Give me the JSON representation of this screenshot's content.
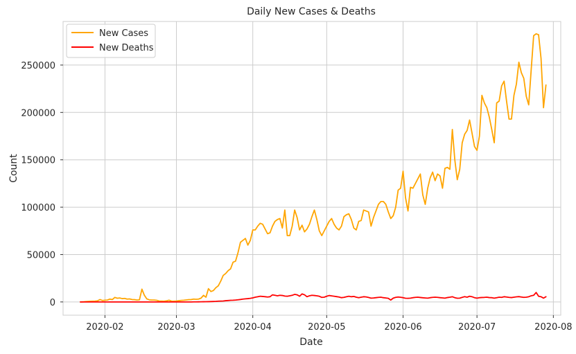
{
  "chart_data": {
    "type": "line",
    "title": "Daily New Cases & Deaths",
    "xlabel": "Date",
    "ylabel": "Count",
    "x_tick_labels": [
      "2020-02",
      "2020-03",
      "2020-04",
      "2020-05",
      "2020-06",
      "2020-07",
      "2020-08"
    ],
    "y_tick_labels": [
      "0",
      "50000",
      "100000",
      "150000",
      "200000",
      "250000"
    ],
    "xlim": [
      "2020-01-15",
      "2020-08-04"
    ],
    "ylim": [
      -14000,
      296000
    ],
    "grid": true,
    "legend_position": "top-left",
    "start_date": "2020-01-22",
    "series": [
      {
        "name": "New Cases",
        "color": "#FFA500",
        "values": [
          0,
          100,
          300,
          500,
          700,
          800,
          900,
          1200,
          2500,
          1500,
          1800,
          2000,
          3000,
          2500,
          4800,
          3900,
          4200,
          3500,
          3700,
          3000,
          3200,
          2500,
          2400,
          2000,
          2200,
          13500,
          7000,
          3200,
          2200,
          2000,
          2000,
          1700,
          1000,
          900,
          800,
          1200,
          1800,
          900,
          800,
          1000,
          1300,
          1600,
          1800,
          2100,
          2400,
          2500,
          3000,
          2800,
          3000,
          4000,
          7000,
          5000,
          14000,
          11000,
          12000,
          15000,
          17000,
          22000,
          28000,
          30000,
          33000,
          35000,
          42000,
          43000,
          52000,
          63000,
          65000,
          67000,
          60000,
          65000,
          76000,
          76000,
          80000,
          83000,
          82000,
          77000,
          72000,
          73000,
          80000,
          85000,
          87000,
          88000,
          78000,
          97000,
          70000,
          70000,
          80000,
          97000,
          89000,
          76000,
          81000,
          74000,
          77000,
          82000,
          90000,
          97000,
          87000,
          75000,
          70000,
          75000,
          80000,
          85000,
          88000,
          82000,
          78000,
          76000,
          80000,
          90000,
          92000,
          93000,
          87000,
          78000,
          76000,
          85000,
          86000,
          97000,
          96000,
          95000,
          80000,
          89000,
          96000,
          103000,
          106000,
          106000,
          103000,
          95000,
          88000,
          91000,
          100000,
          118000,
          120000,
          138000,
          110000,
          96000,
          121000,
          120000,
          125000,
          130000,
          135000,
          113000,
          103000,
          120000,
          131000,
          137000,
          128000,
          135000,
          133000,
          120000,
          141000,
          142000,
          140000,
          182000,
          150000,
          129000,
          140000,
          168000,
          177000,
          181000,
          192000,
          178000,
          164000,
          160000,
          175000,
          218000,
          210000,
          205000,
          195000,
          182000,
          168000,
          210000,
          212000,
          228000,
          233000,
          212000,
          193000,
          193000,
          218000,
          230000,
          253000,
          242000,
          236000,
          217000,
          208000,
          245000,
          281000,
          283000,
          282000,
          257000,
          205000,
          229000
        ]
      },
      {
        "name": "New Deaths",
        "color": "#FF0000",
        "values": [
          0,
          0,
          0,
          0,
          0,
          0,
          0,
          0,
          0,
          0,
          0,
          0,
          0,
          0,
          0,
          0,
          0,
          0,
          0,
          0,
          0,
          0,
          0,
          0,
          0,
          0,
          0,
          0,
          0,
          0,
          0,
          0,
          0,
          0,
          0,
          0,
          0,
          0,
          0,
          0,
          0,
          0,
          0,
          0,
          0,
          0,
          50,
          80,
          100,
          150,
          200,
          250,
          300,
          400,
          500,
          600,
          800,
          900,
          1000,
          1300,
          1500,
          1700,
          1800,
          2000,
          2300,
          2600,
          3000,
          3300,
          3500,
          3800,
          4300,
          5000,
          5500,
          6000,
          5800,
          5500,
          5200,
          5500,
          7500,
          7000,
          6500,
          7000,
          6800,
          6200,
          6000,
          6500,
          7000,
          8000,
          7500,
          6000,
          8500,
          7500,
          5500,
          6500,
          7000,
          6800,
          6500,
          6000,
          4800,
          5000,
          6000,
          6800,
          6400,
          6000,
          5600,
          5200,
          4500,
          4800,
          5500,
          6000,
          5500,
          5800,
          5000,
          4500,
          5000,
          5500,
          5300,
          4700,
          4000,
          4200,
          4500,
          4800,
          5000,
          4500,
          4200,
          3800,
          2000,
          4000,
          4800,
          5200,
          4900,
          4500,
          3900,
          3800,
          4000,
          4500,
          4800,
          5000,
          4700,
          4400,
          4200,
          4000,
          4500,
          4800,
          5000,
          4800,
          4500,
          4300,
          4000,
          4600,
          5000,
          5500,
          4500,
          3900,
          4000,
          4800,
          5600,
          5000,
          6000,
          5500,
          4500,
          4000,
          4500,
          4700,
          4800,
          5000,
          4600,
          4500,
          4000,
          4500,
          5000,
          4800,
          5500,
          5200,
          4800,
          4600,
          5000,
          5400,
          5600,
          5200,
          4800,
          5000,
          5500,
          6500,
          7000,
          10000,
          6000,
          5500,
          4000,
          5500
        ]
      }
    ]
  }
}
